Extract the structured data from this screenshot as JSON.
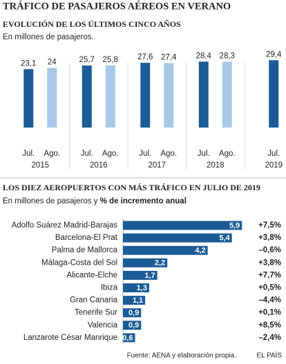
{
  "title": "TRÁFICO DE PASAJEROS AÉREOS EN VERANO",
  "chart_data": [
    {
      "type": "bar",
      "title": "EVOLUCIÓN DE LOS ÚLTIMOS CINCO AÑOS",
      "subtitle": "En millones de pasajeros.",
      "categories": [
        "2015",
        "2016",
        "2017",
        "2018",
        "2019"
      ],
      "series": [
        {
          "name": "Jul.",
          "color": "#1b5b96",
          "values": [
            23.1,
            25.7,
            27.6,
            28.4,
            29.4
          ],
          "value_labels": [
            "23,1",
            "25,7",
            "27,6",
            "28,4",
            "29,4"
          ]
        },
        {
          "name": "Ago.",
          "color": "#a8c8e6",
          "values": [
            24,
            25.8,
            27.4,
            28.3,
            null
          ],
          "value_labels": [
            "24",
            "25,8",
            "27,4",
            "28,3",
            null
          ]
        }
      ],
      "ylim": [
        -18,
        32
      ]
    },
    {
      "type": "barh",
      "title": "LOS DIEZ AEROPUERTOS CON MÁS TRÁFICO EN JULIO DE 2019",
      "subtitle": "En millones de pasajeros y ",
      "categories": [
        "Adolfo Suárez Madrid-Barajas",
        "Barcelona-El Prat",
        "Palma de Mallorca",
        "Málaga-Costa del Sol",
        "Alicante-Elche",
        "Ibiza",
        "Gran Canaria",
        "Tenerife Sur",
        "Valencia",
        "Lanzarote César Manrique"
      ],
      "color": "#1b5b96",
      "values": [
        5.9,
        5.4,
        4.2,
        2.2,
        1.7,
        1.3,
        1.1,
        0.9,
        0.9,
        0.6
      ],
      "value_labels": [
        "5,9",
        "5,4",
        "4,2",
        "2,2",
        "1,7",
        "1,3",
        "1,1",
        "0,9",
        "0,9",
        "0,6"
      ],
      "xlim": [
        0,
        6.2
      ],
      "growth": {
        "name": "% de incremento anual",
        "values": [
          7.5,
          3.8,
          -0.6,
          3.8,
          7.7,
          0.5,
          -4.4,
          0.1,
          8.5,
          -2.4
        ],
        "value_labels": [
          "+7,5%",
          "+3,8%",
          "–0,6%",
          "+3,8%",
          "+7,7%",
          "+0,5%",
          "–4,4%",
          "+0,1%",
          "+8,5%",
          "–2,4%"
        ]
      }
    }
  ],
  "source": "Fuente: AENA y elaboración propia.",
  "credit": "EL PAÍS"
}
